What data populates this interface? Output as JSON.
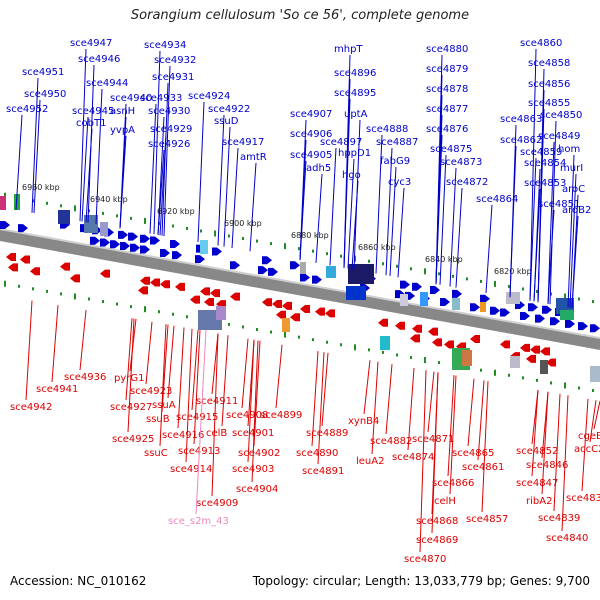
{
  "title": "Sorangium cellulosum 'So ce 56', complete genome",
  "accession": "Accession: NC_010162",
  "topology": "Topology: circular; Length: 13,033,779 bp; Genes: 9,700",
  "colors": {
    "forward": "#0000cc",
    "reverse": "#dd0000",
    "rna": "#ee88bb",
    "backbone": "#888888",
    "tick": "#228b22"
  },
  "kbp_ticks": [
    "6960 kbp",
    "6940 kbp",
    "6920 kbp",
    "6900 kbp",
    "6880 kbp",
    "6860 kbp",
    "6840 kbp",
    "6820 kbp"
  ],
  "forward_genes": [
    "sce4947",
    "sce4946",
    "sce4951",
    "sce4944",
    "sce4950",
    "sce4945",
    "sce4952",
    "cobT1",
    "sce4934",
    "sce4932",
    "sce4931",
    "sce4940",
    "asnH",
    "sce4933",
    "sce4930",
    "yvpA",
    "sce4929",
    "sce4926",
    "sce4924",
    "sce4922",
    "ssuD",
    "sce4917",
    "amtR",
    "sce4907",
    "sce4906",
    "sce4905",
    "adh5",
    "mhpT",
    "sce4896",
    "sce4895",
    "uptA",
    "sce4897",
    "hppD1",
    "hgo",
    "sce4888",
    "sce4887",
    "fabG9",
    "cyc3",
    "sce4880",
    "sce4879",
    "sce4878",
    "sce4877",
    "sce4876",
    "sce4875",
    "sce4873",
    "sce4872",
    "sce4860",
    "sce4858",
    "sce4856",
    "sce4855",
    "sce4863",
    "sce4850",
    "sce4862",
    "sce4849",
    "sce4859",
    "hom",
    "sce4854",
    "murI",
    "sce4853",
    "aroC",
    "sce4864",
    "sce4851",
    "aroB2"
  ],
  "reverse_genes": [
    "sce4941",
    "sce4936",
    "sce4942",
    "pyrG1",
    "sce4927",
    "sce4923",
    "ssuA",
    "sce4915",
    "sce4911",
    "ssuB",
    "sce4916",
    "celB",
    "sce4908",
    "sce4899",
    "sce4925",
    "ssuC",
    "sce4913",
    "sce4901",
    "sce4902",
    "sce4914",
    "sce4903",
    "sce4904",
    "sce4909",
    "sce4889",
    "sce4890",
    "sce4891",
    "xynB4",
    "sce4882",
    "leuA2",
    "sce4874",
    "sce4871",
    "sce4865",
    "sce4861",
    "sce4866",
    "celH",
    "sce4868",
    "sce4869",
    "sce4870",
    "sce4857",
    "sce4852",
    "sce4846",
    "sce4847",
    "ribA2",
    "sce4839",
    "sce4840",
    "accC2",
    "sce4837",
    "cgeB"
  ],
  "rna_genes": [
    "sce_s2m_43"
  ]
}
